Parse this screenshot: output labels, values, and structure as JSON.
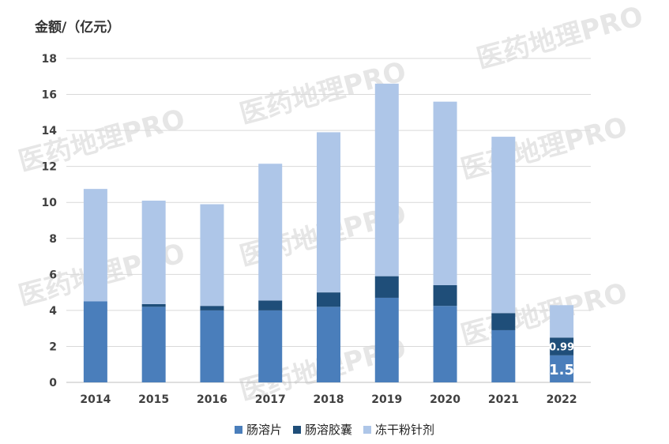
{
  "chart_data": {
    "type": "bar",
    "stacked": true,
    "ylabel": "金额/（亿元）",
    "ylim": [
      0,
      18
    ],
    "yticks": [
      0,
      2,
      4,
      6,
      8,
      10,
      12,
      14,
      16,
      18
    ],
    "grid": true,
    "legend_position": "bottom",
    "categories": [
      "2014",
      "2015",
      "2016",
      "2017",
      "2018",
      "2019",
      "2020",
      "2021",
      "2022"
    ],
    "series": [
      {
        "name": "肠溶片",
        "color": "#4a7ebb",
        "values": [
          4.5,
          4.2,
          4.0,
          4.0,
          4.2,
          4.7,
          4.25,
          2.9,
          1.5
        ]
      },
      {
        "name": "肠溶胶囊",
        "color": "#1f4e79",
        "values": [
          0.0,
          0.15,
          0.25,
          0.55,
          0.8,
          1.2,
          1.15,
          0.95,
          0.99
        ]
      },
      {
        "name": "冻干粉针剂",
        "color": "#aec6e8",
        "values": [
          6.25,
          5.75,
          5.65,
          7.6,
          8.9,
          10.7,
          10.2,
          9.8,
          1.8
        ]
      }
    ],
    "data_labels": [
      {
        "category": "2022",
        "series": "肠溶片",
        "text": "1.5"
      },
      {
        "category": "2022",
        "series": "肠溶胶囊",
        "text": "0.99"
      }
    ]
  },
  "watermark": "医药地理PRO"
}
